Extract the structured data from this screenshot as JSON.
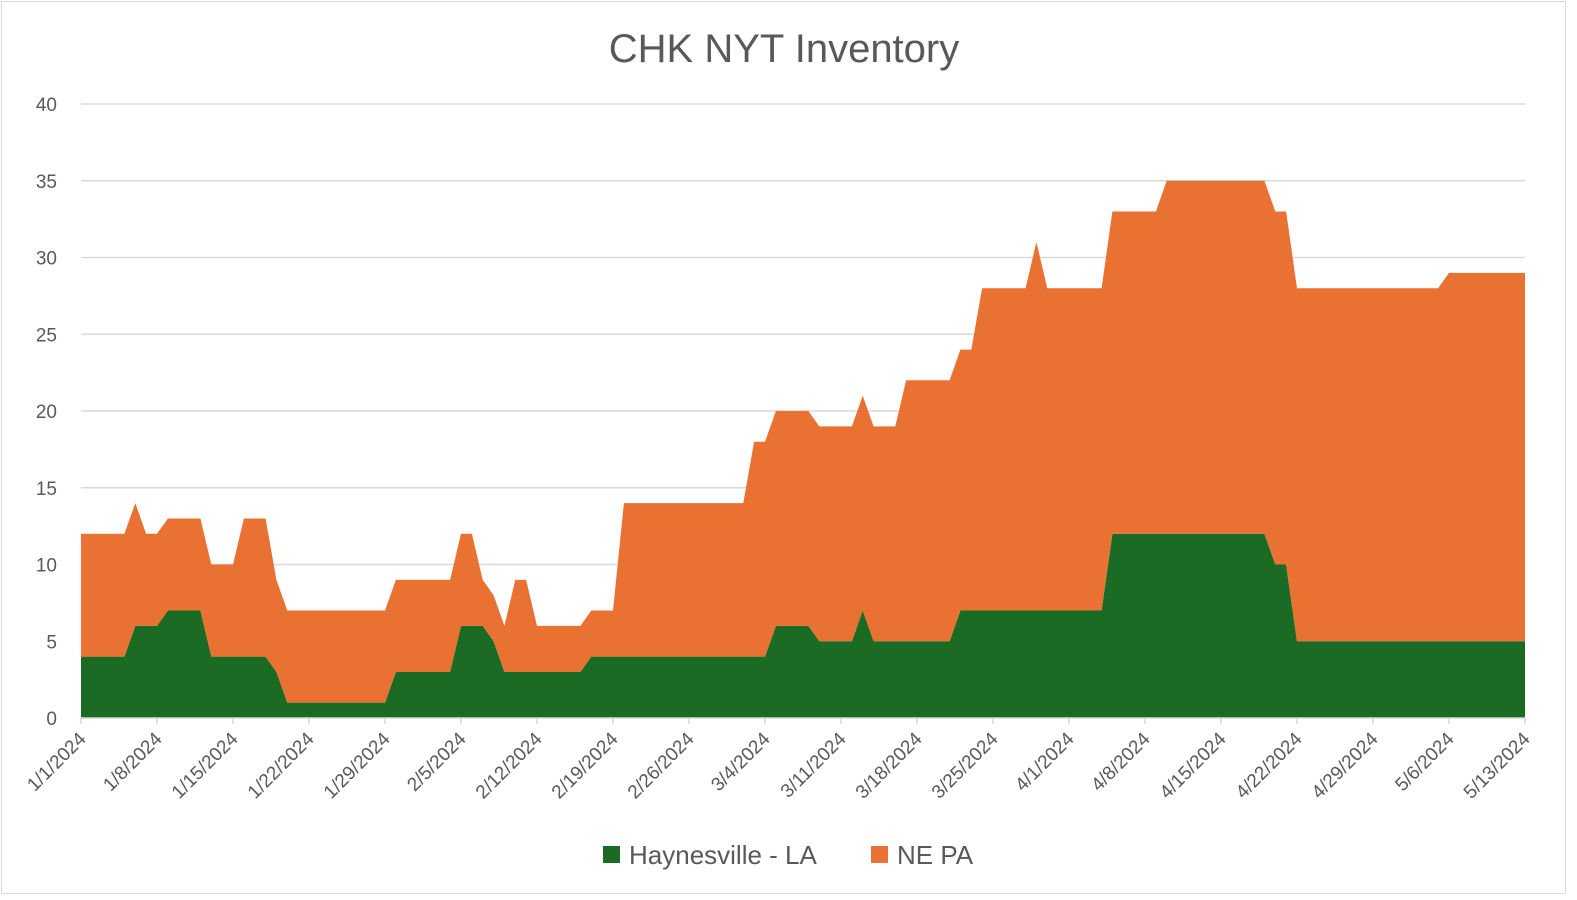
{
  "chart_data": {
    "type": "area",
    "stacked": true,
    "title": "CHK NYT Inventory",
    "xlabel": "",
    "ylabel": "",
    "ylim": [
      0,
      40
    ],
    "y_ticks": [
      0,
      5,
      10,
      15,
      20,
      25,
      30,
      35,
      40
    ],
    "x_range": [
      "1/1/2024",
      "5/13/2024"
    ],
    "x_tick_labels": [
      "1/1/2024",
      "1/8/2024",
      "1/15/2024",
      "1/22/2024",
      "1/29/2024",
      "2/5/2024",
      "2/12/2024",
      "2/19/2024",
      "2/26/2024",
      "3/4/2024",
      "3/11/2024",
      "3/18/2024",
      "3/25/2024",
      "4/1/2024",
      "4/8/2024",
      "4/15/2024",
      "4/22/2024",
      "4/29/2024",
      "5/6/2024",
      "5/13/2024"
    ],
    "grid": "horizontal",
    "legend": "bottom",
    "x": [
      "1/1/2024",
      "1/5/2024",
      "1/6/2024",
      "1/7/2024",
      "1/8/2024",
      "1/9/2024",
      "1/12/2024",
      "1/13/2024",
      "1/15/2024",
      "1/16/2024",
      "1/18/2024",
      "1/19/2024",
      "1/20/2024",
      "1/29/2024",
      "1/30/2024",
      "2/4/2024",
      "2/5/2024",
      "2/6/2024",
      "2/7/2024",
      "2/8/2024",
      "2/9/2024",
      "2/10/2024",
      "2/11/2024",
      "2/12/2024",
      "2/16/2024",
      "2/17/2024",
      "2/19/2024",
      "2/20/2024",
      "3/2/2024",
      "3/3/2024",
      "3/4/2024",
      "3/5/2024",
      "3/8/2024",
      "3/9/2024",
      "3/12/2024",
      "3/13/2024",
      "3/14/2024",
      "3/16/2024",
      "3/17/2024",
      "3/21/2024",
      "3/22/2024",
      "3/23/2024",
      "3/24/2024",
      "3/28/2024",
      "3/29/2024",
      "3/30/2024",
      "4/4/2024",
      "4/5/2024",
      "4/9/2024",
      "4/10/2024",
      "4/19/2024",
      "4/20/2024",
      "4/21/2024",
      "4/22/2024",
      "5/5/2024",
      "5/6/2024",
      "5/13/2024"
    ],
    "series": [
      {
        "name": "Haynesville - LA",
        "color": "#1b6b24",
        "values": [
          4,
          4,
          6,
          6,
          6,
          7,
          7,
          4,
          4,
          4,
          4,
          3,
          1,
          1,
          3,
          3,
          6,
          6,
          6,
          5,
          3,
          3,
          3,
          3,
          3,
          4,
          4,
          4,
          4,
          4,
          4,
          6,
          6,
          5,
          5,
          7,
          5,
          5,
          5,
          5,
          7,
          7,
          7,
          7,
          7,
          7,
          7,
          12,
          12,
          12,
          12,
          10,
          10,
          5,
          5,
          5,
          5
        ]
      },
      {
        "name": "NE PA",
        "color": "#e97132",
        "values": [
          8,
          8,
          8,
          6,
          6,
          6,
          6,
          6,
          6,
          9,
          9,
          6,
          6,
          6,
          6,
          6,
          6,
          6,
          3,
          3,
          3,
          6,
          6,
          3,
          3,
          3,
          3,
          10,
          10,
          14,
          14,
          14,
          14,
          14,
          14,
          14,
          14,
          14,
          17,
          17,
          17,
          17,
          21,
          21,
          24,
          21,
          21,
          21,
          21,
          23,
          23,
          23,
          23,
          23,
          23,
          24,
          24
        ]
      }
    ]
  }
}
